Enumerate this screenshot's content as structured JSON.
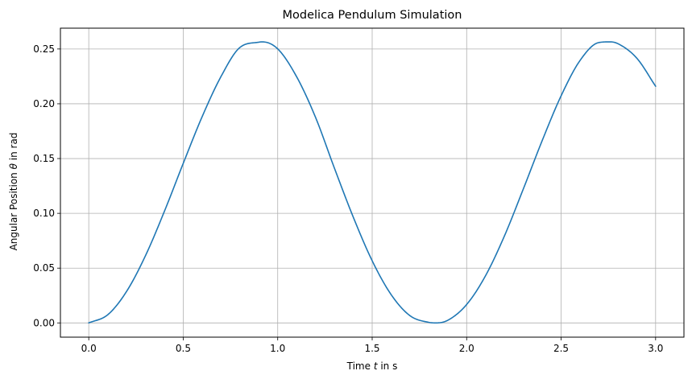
{
  "chart_data": {
    "type": "line",
    "title": "Modelica Pendulum Simulation",
    "xlabel": {
      "prefix": "Time ",
      "symbol": "t",
      "suffix": " in s"
    },
    "ylabel": {
      "prefix": "Angular Position ",
      "symbol": "θ",
      "suffix": " in rad"
    },
    "xlim": [
      -0.15,
      3.15
    ],
    "ylim": [
      -0.013,
      0.269
    ],
    "grid": true,
    "legend": "none",
    "x_ticks": [
      {
        "value": 0.0,
        "label": "0.0"
      },
      {
        "value": 0.5,
        "label": "0.5"
      },
      {
        "value": 1.0,
        "label": "1.0"
      },
      {
        "value": 1.5,
        "label": "1.5"
      },
      {
        "value": 2.0,
        "label": "2.0"
      },
      {
        "value": 2.5,
        "label": "2.5"
      },
      {
        "value": 3.0,
        "label": "3.0"
      }
    ],
    "y_ticks": [
      {
        "value": 0.0,
        "label": "0.00"
      },
      {
        "value": 0.05,
        "label": "0.05"
      },
      {
        "value": 0.1,
        "label": "0.10"
      },
      {
        "value": 0.15,
        "label": "0.15"
      },
      {
        "value": 0.2,
        "label": "0.20"
      },
      {
        "value": 0.25,
        "label": "0.25"
      }
    ],
    "series": [
      {
        "color": "#1f77b4",
        "x": [
          0.0,
          0.1,
          0.2,
          0.3,
          0.4,
          0.5,
          0.6,
          0.7,
          0.8,
          0.9,
          0.918,
          1.0,
          1.1,
          1.2,
          1.3,
          1.4,
          1.5,
          1.6,
          1.7,
          1.8,
          1.84,
          1.9,
          2.0,
          2.1,
          2.2,
          2.3,
          2.4,
          2.5,
          2.6,
          2.7,
          2.76,
          2.8,
          2.9,
          3.0
        ],
        "y": [
          0.0,
          0.0074,
          0.0287,
          0.0613,
          0.1017,
          0.1456,
          0.1882,
          0.2249,
          0.2514,
          0.2562,
          0.2565,
          0.2501,
          0.2247,
          0.1877,
          0.1413,
          0.0965,
          0.0567,
          0.0259,
          0.0066,
          0.0005,
          0.0,
          0.0024,
          0.0168,
          0.0431,
          0.0794,
          0.1223,
          0.1665,
          0.2073,
          0.2395,
          0.2559,
          0.2565,
          0.2549,
          0.2417,
          0.216
        ]
      }
    ]
  },
  "colors": {
    "line": "#1f77b4",
    "grid": "#b0b0b0",
    "axes": "#000000",
    "background": "#ffffff"
  }
}
